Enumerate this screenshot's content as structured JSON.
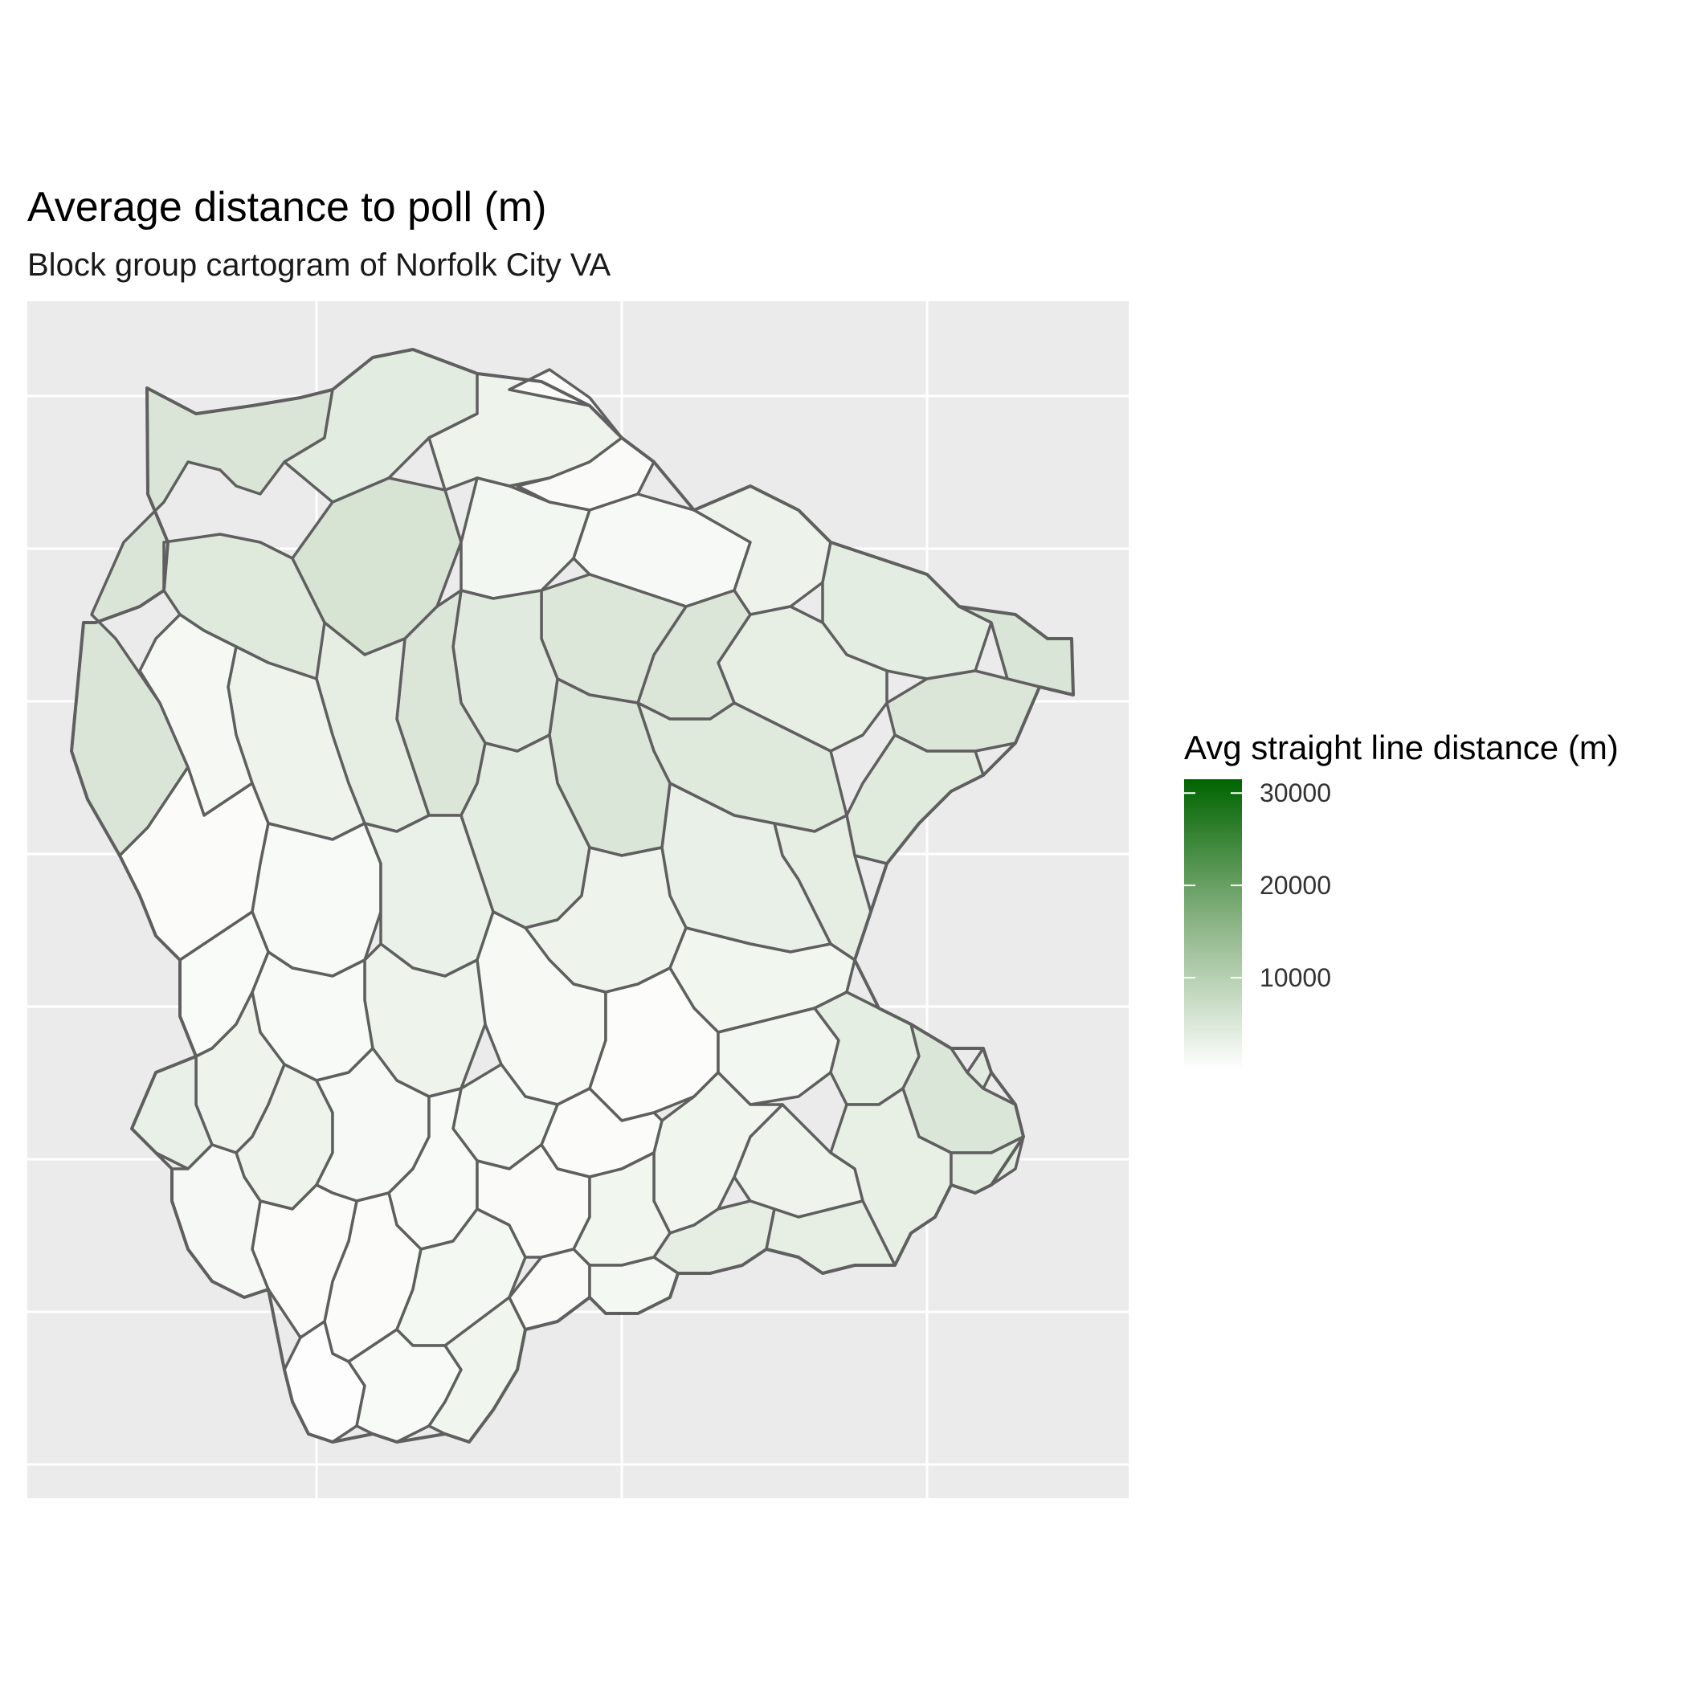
{
  "title": "Average distance to poll (m)",
  "subtitle": "Block group cartogram of Norfolk City VA",
  "legend": {
    "title": "Avg straight line distance (m)",
    "ticks": [
      "30000",
      "20000",
      "10000"
    ],
    "tick_values": [
      30000,
      20000,
      10000
    ],
    "range": [
      0,
      31500
    ],
    "color_low": "#ffffff",
    "color_mid": "#8db587",
    "color_high": "#006400"
  },
  "colors": {
    "panel_background": "#ebebeb",
    "grid": "#ffffff",
    "border": "#5f5f5f"
  },
  "chart_data": {
    "type": "choropleth",
    "title": "Average distance to poll (m)",
    "subtitle": "Block group cartogram of Norfolk City VA",
    "legend_title": "Avg straight line distance (m)",
    "grid": true,
    "legend_placement": "right",
    "scale": {
      "low": 0,
      "high": 31500,
      "ticks": [
        10000,
        20000,
        30000
      ]
    },
    "regions_note_values_estimated": [
      3000,
      4000,
      5000,
      6000,
      7000,
      8000
    ]
  }
}
